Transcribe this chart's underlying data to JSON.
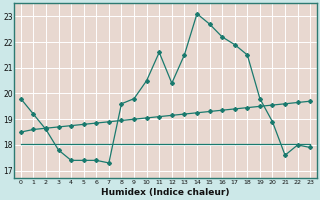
{
  "xlabel": "Humidex (Indice chaleur)",
  "outer_bg": "#cce8e8",
  "plot_bg": "#e8d8d0",
  "grid_color": "#ffffff",
  "line_color": "#1a7a6e",
  "border_color": "#2d7a72",
  "xlim": [
    -0.5,
    23.5
  ],
  "ylim": [
    16.7,
    23.5
  ],
  "yticks": [
    17,
    18,
    19,
    20,
    21,
    22,
    23
  ],
  "xticks": [
    0,
    1,
    2,
    3,
    4,
    5,
    6,
    7,
    8,
    9,
    10,
    11,
    12,
    13,
    14,
    15,
    16,
    17,
    18,
    19,
    20,
    21,
    22,
    23
  ],
  "series1_x": [
    0,
    1,
    2,
    3,
    4,
    5,
    6,
    7,
    8,
    9,
    10,
    11,
    12,
    13,
    14,
    15,
    16,
    17,
    18,
    19,
    20,
    21,
    22,
    23
  ],
  "series1_y": [
    19.8,
    19.2,
    18.6,
    17.8,
    17.4,
    17.4,
    17.4,
    17.3,
    19.6,
    19.8,
    20.5,
    21.6,
    20.4,
    21.5,
    23.1,
    22.7,
    22.2,
    21.9,
    21.5,
    19.8,
    18.9,
    17.6,
    18.0,
    17.9
  ],
  "series2_x": [
    0,
    1,
    2,
    3,
    4,
    5,
    6,
    7,
    8,
    9,
    10,
    11,
    12,
    13,
    14,
    15,
    16,
    17,
    18,
    19,
    20,
    21,
    22,
    23
  ],
  "series2_y": [
    18.5,
    18.6,
    18.65,
    18.7,
    18.75,
    18.8,
    18.85,
    18.9,
    18.95,
    19.0,
    19.05,
    19.1,
    19.15,
    19.2,
    19.25,
    19.3,
    19.35,
    19.4,
    19.45,
    19.5,
    19.55,
    19.6,
    19.65,
    19.7
  ],
  "series3_x": [
    0,
    1,
    2,
    3,
    4,
    5,
    6,
    7,
    8,
    9,
    10,
    11,
    12,
    13,
    14,
    15,
    16,
    17,
    18,
    19,
    20,
    21,
    22,
    23
  ],
  "series3_y": [
    18.05,
    18.05,
    18.05,
    18.05,
    18.05,
    18.05,
    18.05,
    18.05,
    18.05,
    18.05,
    18.05,
    18.05,
    18.05,
    18.05,
    18.05,
    18.05,
    18.05,
    18.05,
    18.05,
    18.05,
    18.05,
    18.05,
    18.05,
    18.05
  ]
}
